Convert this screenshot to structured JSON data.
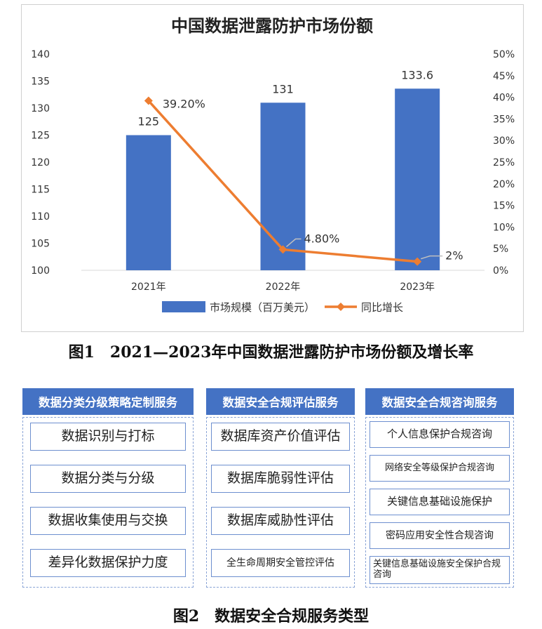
{
  "chart_data": {
    "type": "bar+line",
    "title": "中国数据泄露防护市场份额",
    "categories": [
      "2021年",
      "2022年",
      "2023年"
    ],
    "series": [
      {
        "name": "市场规模（百万美元）",
        "type": "bar",
        "axis": "left",
        "values": [
          125,
          131,
          133.6
        ],
        "labels": [
          "125",
          "131",
          "133.6"
        ],
        "color": "#4472c4"
      },
      {
        "name": "同比增长",
        "type": "line",
        "axis": "right",
        "values": [
          39.2,
          4.8,
          2
        ],
        "labels": [
          "39.20%",
          "4.80%",
          "2%"
        ],
        "color": "#ed7d31"
      }
    ],
    "y_left": {
      "min": 100,
      "max": 140,
      "ticks": [
        "100",
        "105",
        "110",
        "115",
        "120",
        "125",
        "130",
        "135",
        "140"
      ]
    },
    "y_right": {
      "min": 0,
      "max": 50,
      "ticks": [
        "0%",
        "5%",
        "10%",
        "15%",
        "20%",
        "25%",
        "30%",
        "35%",
        "40%",
        "45%",
        "50%"
      ]
    },
    "grid": false,
    "legend_position": "bottom"
  },
  "figure1_caption": "图1　2021—2023年中国数据泄露防护市场份额及增长率",
  "figure2_caption": "图2　数据安全合规服务类型",
  "services": [
    {
      "header": "数据分类分级策略定制服务",
      "items": [
        "数据识别与打标",
        "数据分类与分级",
        "数据收集使用与交换",
        "差异化数据保护力度"
      ]
    },
    {
      "header": "数据安全合规评估服务",
      "items": [
        "数据库资产价值评估",
        "数据库脆弱性评估",
        "数据库威胁性评估",
        "全生命周期安全管控评估"
      ]
    },
    {
      "header": "数据安全合规咨询服务",
      "items": [
        "个人信息保护合规咨询",
        "网络安全等级保护合规咨询",
        "关键信息基础设施保护",
        "密码应用安全性合规咨询",
        "关键信息基础设施安全保护合规咨询"
      ]
    }
  ]
}
